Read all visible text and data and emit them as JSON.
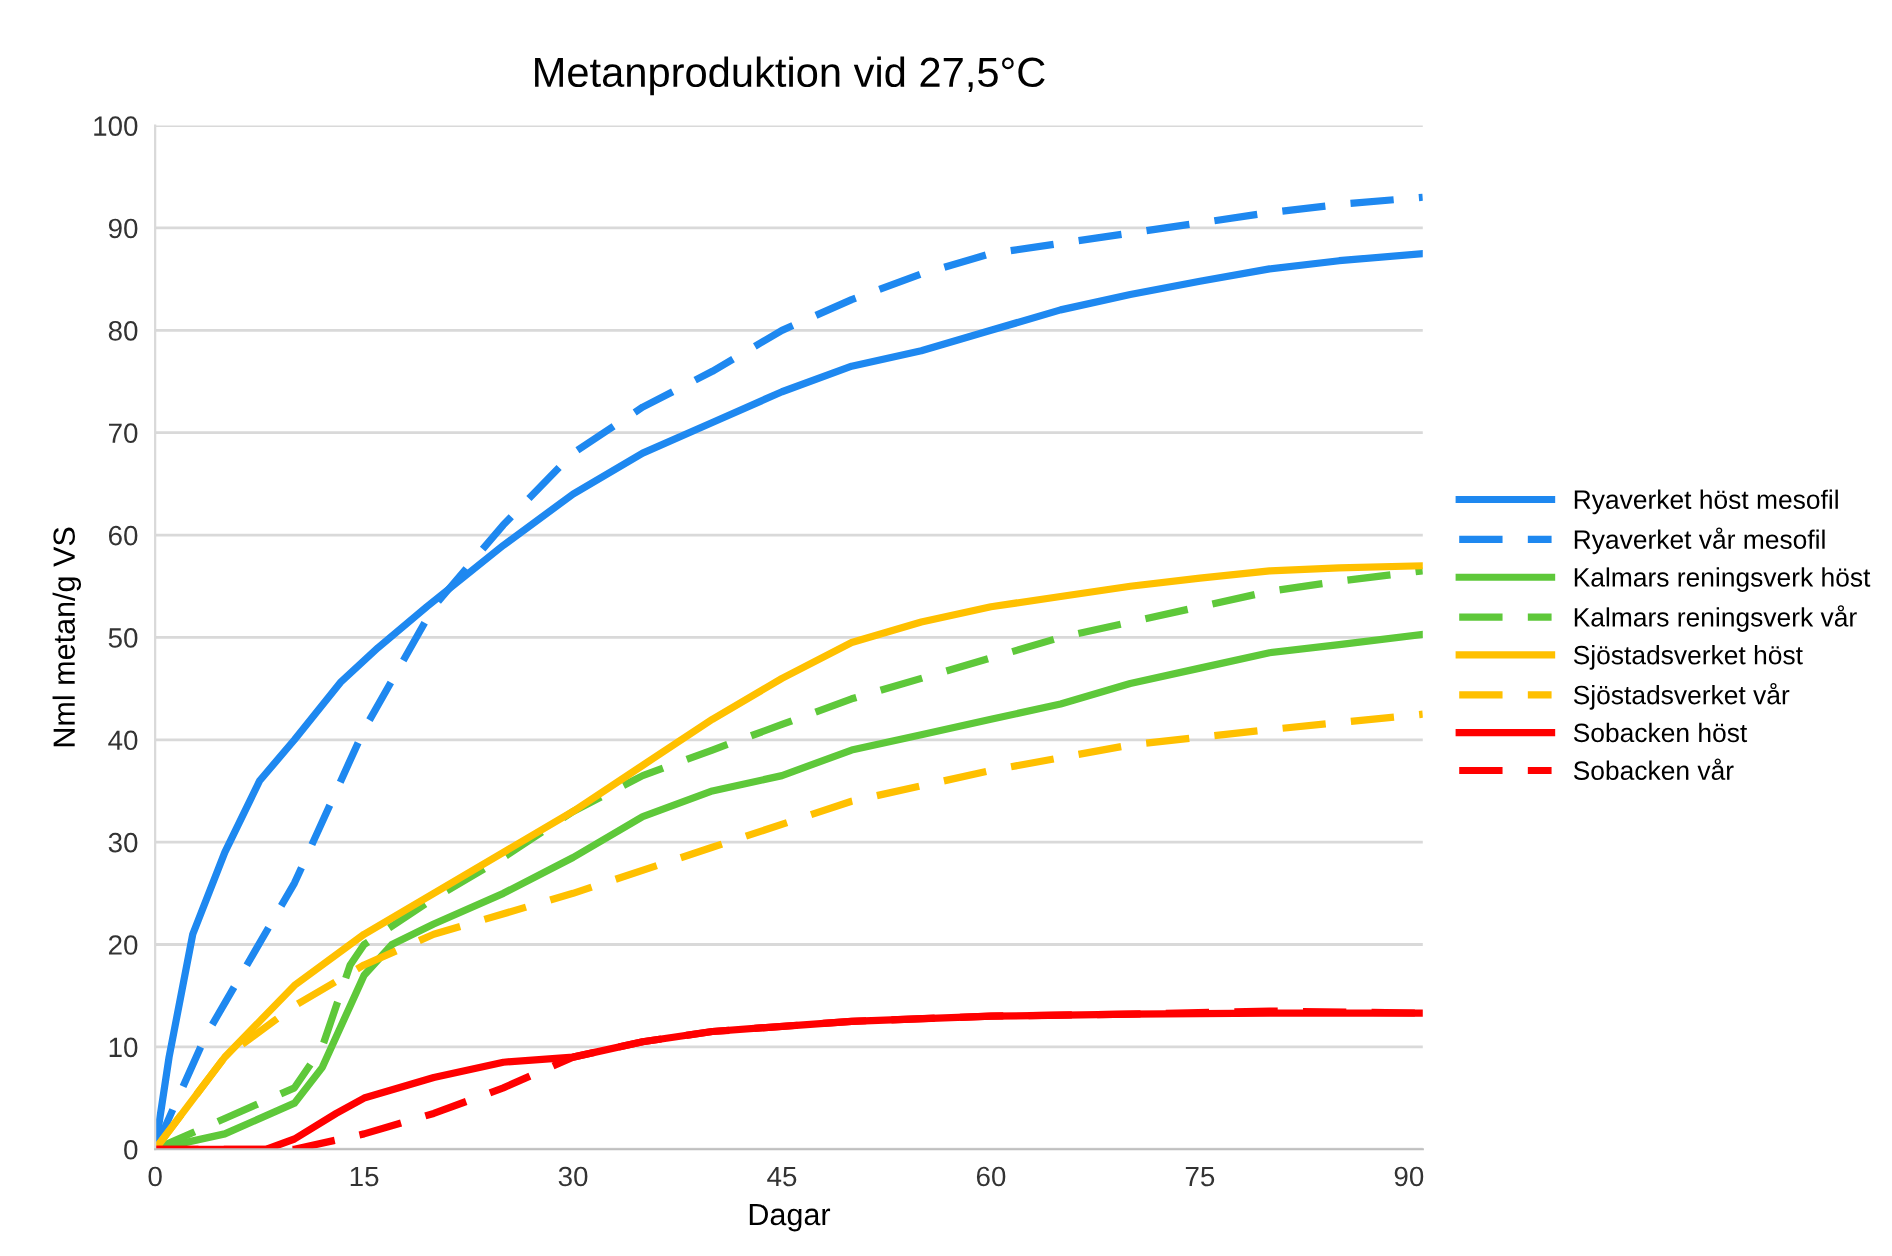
{
  "chart_data": {
    "type": "line",
    "title": "Metanproduktion vid 27,5°C",
    "xlabel": "Dagar",
    "ylabel": "Nml metan/g VS",
    "xlim": [
      0,
      91
    ],
    "xticks": [
      0,
      15,
      30,
      45,
      60,
      75,
      90
    ],
    "ylim": [
      0,
      100
    ],
    "yticks": [
      0,
      10,
      20,
      30,
      40,
      50,
      60,
      70,
      80,
      90,
      100
    ],
    "grid": "y",
    "legend": "right",
    "marker": "none",
    "series": [
      {
        "name": "Ryaverket höst mesofil",
        "color": "#1e88f0",
        "line_style": "solid",
        "x": [
          0,
          1,
          2.7,
          5,
          7.5,
          10,
          13.3,
          16,
          19.5,
          25,
          30,
          35,
          40,
          45,
          50,
          55,
          60,
          65,
          70,
          75,
          80,
          85,
          91
        ],
        "values": [
          0,
          9,
          21,
          29,
          36,
          40,
          45.6,
          49,
          53,
          59,
          64,
          68,
          71,
          74,
          76.5,
          78,
          80,
          82,
          83.5,
          84.8,
          86,
          86.8,
          87.5
        ]
      },
      {
        "name": "Ryaverket vår mesofil",
        "color": "#1e88f0",
        "line_style": "dashed",
        "x": [
          0,
          3.6,
          10,
          15,
          20,
          25,
          30,
          35,
          40,
          45,
          50,
          55,
          60,
          65,
          70,
          75,
          80,
          85,
          91
        ],
        "values": [
          0,
          11,
          26,
          41,
          53,
          61,
          68,
          72.5,
          76,
          80,
          83,
          85.5,
          87.5,
          88.5,
          89.5,
          90.5,
          91.5,
          92.3,
          93
        ]
      },
      {
        "name": "Kalmars reningsverk höst",
        "color": "#5ec83a",
        "line_style": "solid",
        "x": [
          0,
          5,
          10,
          12,
          14,
          15,
          17,
          20,
          25,
          30,
          35,
          40,
          45,
          50,
          55,
          60,
          65,
          70,
          75,
          80,
          85,
          91
        ],
        "values": [
          0,
          1.5,
          4.5,
          8,
          14,
          17,
          20,
          22,
          25,
          28.5,
          32.5,
          35,
          36.5,
          39,
          40.5,
          42,
          43.5,
          45.5,
          47,
          48.5,
          49.3,
          50.3
        ]
      },
      {
        "name": "Kalmars reningsverk vår",
        "color": "#5ec83a",
        "line_style": "dashed",
        "x": [
          0,
          5,
          10,
          12,
          14,
          15,
          20,
          25,
          30,
          35,
          40,
          45,
          50,
          55,
          60,
          65,
          70,
          75,
          80,
          85,
          91
        ],
        "values": [
          0,
          3,
          6,
          10,
          18,
          20,
          24.5,
          28.5,
          33,
          36.5,
          39,
          41.5,
          44,
          46,
          48,
          50,
          51.5,
          53,
          54.5,
          55.5,
          56.5
        ]
      },
      {
        "name": "Sjöstadsverket höst",
        "color": "#ffc000",
        "line_style": "solid",
        "x": [
          0,
          5,
          10,
          15,
          20,
          25,
          30,
          35,
          40,
          45,
          50,
          55,
          60,
          65,
          70,
          75,
          80,
          85,
          91
        ],
        "values": [
          0,
          9,
          16,
          21,
          25,
          29,
          33,
          37.5,
          42,
          46,
          49.5,
          51.5,
          53,
          54,
          55,
          55.8,
          56.5,
          56.8,
          57
        ]
      },
      {
        "name": "Sjöstadsverket vår",
        "color": "#ffc000",
        "line_style": "dashed",
        "x": [
          0,
          5,
          10,
          15,
          20,
          30,
          40,
          50,
          60,
          70,
          80,
          91
        ],
        "values": [
          0,
          9,
          14,
          18,
          21,
          25,
          29.5,
          34,
          37,
          39.5,
          41,
          42.5
        ]
      },
      {
        "name": "Sobacken höst",
        "color": "#ff0000",
        "line_style": "solid",
        "x": [
          0,
          8,
          10,
          13,
          15,
          20,
          25,
          30,
          35,
          40,
          50,
          60,
          70,
          80,
          91
        ],
        "values": [
          0,
          0,
          1,
          3.5,
          5,
          7,
          8.5,
          9,
          10.5,
          11.5,
          12.5,
          13,
          13.2,
          13.3,
          13.3
        ]
      },
      {
        "name": "Sobacken vår",
        "color": "#ff0000",
        "line_style": "dashed",
        "x": [
          0,
          10,
          15,
          20,
          25,
          30,
          35,
          40,
          50,
          60,
          70,
          80,
          91
        ],
        "values": [
          0,
          0,
          1.5,
          3.5,
          6,
          9,
          10.5,
          11.5,
          12.5,
          13,
          13.2,
          13.5,
          13.3
        ]
      }
    ]
  }
}
